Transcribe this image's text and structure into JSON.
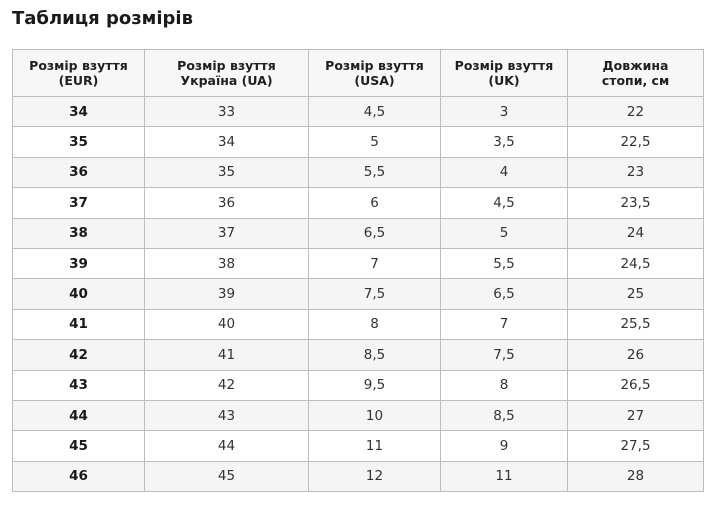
{
  "title": "Таблиця розмірів",
  "headers": [
    [
      "Розмір взуття",
      "(EUR)"
    ],
    [
      "Розмір взуття",
      "Україна (UA)"
    ],
    [
      "Розмір взуття",
      "(USA)"
    ],
    [
      "Розмір взуття",
      "(UK)"
    ],
    [
      "Довжина",
      "стопи, см"
    ]
  ],
  "rows": [
    [
      "34",
      "33",
      "4,5",
      "3",
      "22"
    ],
    [
      "35",
      "34",
      "5",
      "3,5",
      "22,5"
    ],
    [
      "36",
      "35",
      "5,5",
      "4",
      "23"
    ],
    [
      "37",
      "36",
      "6",
      "4,5",
      "23,5"
    ],
    [
      "38",
      "37",
      "6,5",
      "5",
      "24"
    ],
    [
      "39",
      "38",
      "7",
      "5,5",
      "24,5"
    ],
    [
      "40",
      "39",
      "7,5",
      "6,5",
      "25"
    ],
    [
      "41",
      "40",
      "8",
      "7",
      "25,5"
    ],
    [
      "42",
      "41",
      "8,5",
      "7,5",
      "26"
    ],
    [
      "43",
      "42",
      "9,5",
      "8",
      "26,5"
    ],
    [
      "44",
      "43",
      "10",
      "8,5",
      "27"
    ],
    [
      "45",
      "44",
      "11",
      "9",
      "27,5"
    ],
    [
      "46",
      "45",
      "12",
      "11",
      "28"
    ]
  ],
  "colors": {
    "border": "#bdbdbd",
    "row_shade": "#f5f5f5",
    "header_bg": "#f7f7f7"
  }
}
